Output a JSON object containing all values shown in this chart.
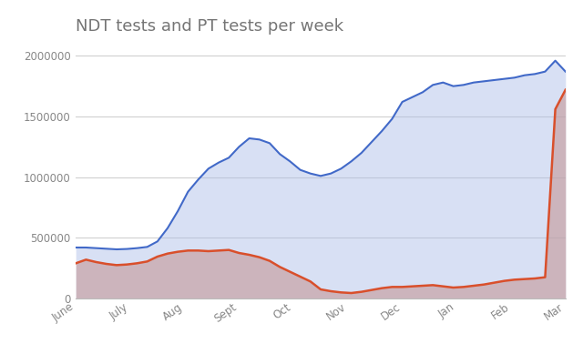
{
  "title": "NDT tests and PT tests per week",
  "title_fontsize": 13,
  "title_color": "#757575",
  "background_color": "#ffffff",
  "x_labels": [
    "June",
    "July",
    "Aug",
    "Sept",
    "Oct",
    "Nov",
    "Dec",
    "Jan",
    "Feb",
    "Mar"
  ],
  "ndt_color": "#4169c8",
  "ndt_fill_color": "#aabce8",
  "pt_color": "#d94f2b",
  "pt_fill_color": "#c49898",
  "ylim": [
    0,
    2100000
  ],
  "yticks": [
    0,
    500000,
    1000000,
    1500000,
    2000000
  ],
  "grid_color": "#d0d0d0",
  "ndt_values": [
    420000,
    420000,
    415000,
    410000,
    405000,
    408000,
    415000,
    425000,
    470000,
    580000,
    720000,
    880000,
    980000,
    1070000,
    1120000,
    1160000,
    1250000,
    1320000,
    1310000,
    1280000,
    1190000,
    1130000,
    1060000,
    1030000,
    1010000,
    1030000,
    1070000,
    1130000,
    1200000,
    1290000,
    1380000,
    1480000,
    1620000,
    1660000,
    1700000,
    1760000,
    1780000,
    1750000,
    1760000,
    1780000,
    1790000,
    1800000,
    1810000,
    1820000,
    1840000,
    1850000,
    1870000,
    1960000,
    1870000
  ],
  "pt_values": [
    290000,
    320000,
    300000,
    285000,
    275000,
    280000,
    290000,
    305000,
    345000,
    370000,
    385000,
    395000,
    395000,
    390000,
    395000,
    400000,
    375000,
    360000,
    340000,
    310000,
    260000,
    220000,
    180000,
    140000,
    75000,
    60000,
    50000,
    45000,
    55000,
    70000,
    85000,
    95000,
    95000,
    100000,
    105000,
    110000,
    100000,
    90000,
    95000,
    105000,
    115000,
    130000,
    145000,
    155000,
    160000,
    165000,
    175000,
    1560000,
    1720000
  ],
  "x_tick_positions_frac": [
    0.0,
    0.111,
    0.222,
    0.333,
    0.444,
    0.556,
    0.667,
    0.778,
    0.889,
    1.0
  ]
}
